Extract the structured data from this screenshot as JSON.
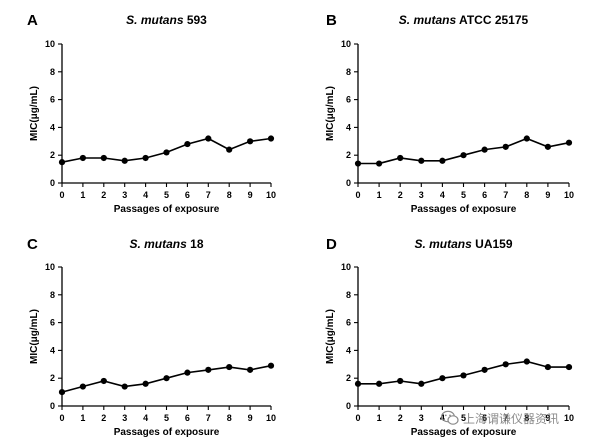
{
  "chart_data": [
    {
      "type": "line",
      "panel": "A",
      "title_italic": "S. mutans",
      "title_rest": " 593",
      "xlabel": "Passages of exposure",
      "ylabel": "MIC(μg/mL)",
      "xlim": [
        0,
        10
      ],
      "ylim": [
        0,
        10
      ],
      "xticks": [
        0,
        1,
        2,
        3,
        4,
        5,
        6,
        7,
        8,
        9,
        10
      ],
      "yticks": [
        0,
        2,
        4,
        6,
        8,
        10
      ],
      "x": [
        0,
        1,
        2,
        3,
        4,
        5,
        6,
        7,
        8,
        9,
        10
      ],
      "y": [
        1.5,
        1.8,
        1.8,
        1.6,
        1.8,
        2.2,
        2.8,
        3.2,
        2.4,
        3.0,
        3.2
      ]
    },
    {
      "type": "line",
      "panel": "B",
      "title_italic": "S. mutans",
      "title_rest": " ATCC 25175",
      "xlabel": "Passages of exposure",
      "ylabel": "MIC(μg/mL)",
      "xlim": [
        0,
        10
      ],
      "ylim": [
        0,
        10
      ],
      "xticks": [
        0,
        1,
        2,
        3,
        4,
        5,
        6,
        7,
        8,
        9,
        10
      ],
      "yticks": [
        0,
        2,
        4,
        6,
        8,
        10
      ],
      "x": [
        0,
        1,
        2,
        3,
        4,
        5,
        6,
        7,
        8,
        9,
        10
      ],
      "y": [
        1.4,
        1.4,
        1.8,
        1.6,
        1.6,
        2.0,
        2.4,
        2.6,
        3.2,
        2.6,
        2.9
      ]
    },
    {
      "type": "line",
      "panel": "C",
      "title_italic": "S. mutans",
      "title_rest": " 18",
      "xlabel": "Passages of exposure",
      "ylabel": "MIC(μg/mL)",
      "xlim": [
        0,
        10
      ],
      "ylim": [
        0,
        10
      ],
      "xticks": [
        0,
        1,
        2,
        3,
        4,
        5,
        6,
        7,
        8,
        9,
        10
      ],
      "yticks": [
        0,
        2,
        4,
        6,
        8,
        10
      ],
      "x": [
        0,
        1,
        2,
        3,
        4,
        5,
        6,
        7,
        8,
        9,
        10
      ],
      "y": [
        1.0,
        1.4,
        1.8,
        1.4,
        1.6,
        2.0,
        2.4,
        2.6,
        2.8,
        2.6,
        2.9
      ]
    },
    {
      "type": "line",
      "panel": "D",
      "title_italic": "S. mutans",
      "title_rest": " UA159",
      "xlabel": "Passages of exposure",
      "ylabel": "MIC(μg/mL)",
      "xlim": [
        0,
        10
      ],
      "ylim": [
        0,
        10
      ],
      "xticks": [
        0,
        1,
        2,
        3,
        4,
        5,
        6,
        7,
        8,
        9,
        10
      ],
      "yticks": [
        0,
        2,
        4,
        6,
        8,
        10
      ],
      "x": [
        0,
        1,
        2,
        3,
        4,
        5,
        6,
        7,
        8,
        9,
        10
      ],
      "y": [
        1.6,
        1.6,
        1.8,
        1.6,
        2.0,
        2.2,
        2.6,
        3.0,
        3.2,
        2.8,
        2.8
      ]
    }
  ],
  "watermark": {
    "text": "上海谓谦仪器资讯",
    "icon": "wechat-icon"
  }
}
